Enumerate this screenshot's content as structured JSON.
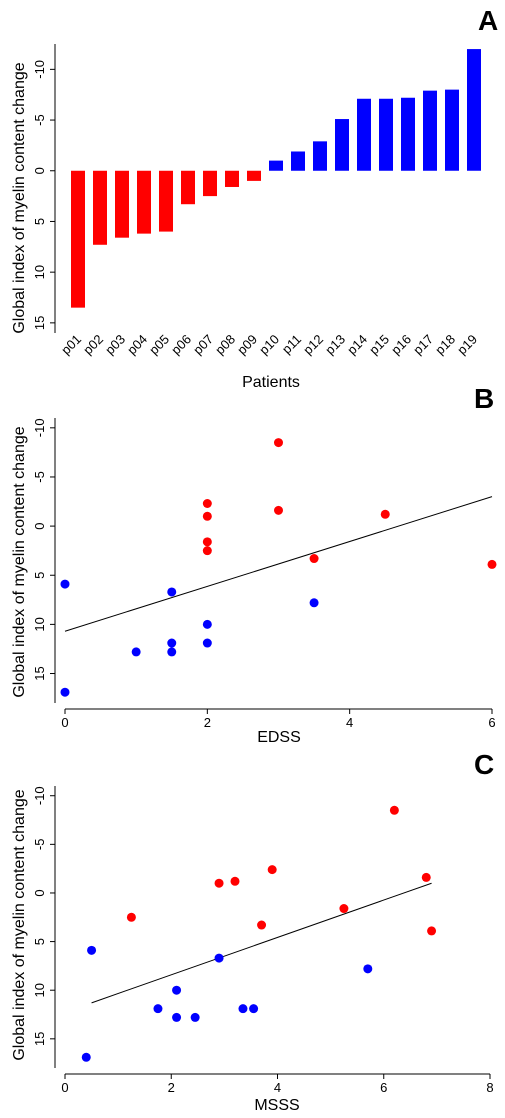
{
  "chart_data": [
    {
      "panel": "A",
      "type": "bar",
      "xlabel": "Patients",
      "ylabel": "Global index of myelin content change",
      "y_axis_inverted": true,
      "ylim": [
        16,
        -12.5
      ],
      "yticks": [
        15,
        10,
        5,
        0,
        -5,
        -10
      ],
      "ytick_labels": [
        "15",
        "10",
        "5",
        "0",
        "-5",
        "-10"
      ],
      "categories": [
        "p01",
        "p02",
        "p03",
        "p04",
        "p05",
        "p06",
        "p07",
        "p08",
        "p09",
        "p10",
        "p11",
        "p12",
        "p13",
        "p14",
        "p15",
        "p16",
        "p17",
        "p18",
        "p19"
      ],
      "values": [
        13.5,
        7.3,
        6.6,
        6.2,
        6.0,
        3.3,
        2.5,
        1.6,
        1.0,
        -1.0,
        -1.9,
        -2.9,
        -5.1,
        -7.1,
        -7.1,
        -7.2,
        -7.9,
        -8.0,
        -12.0
      ],
      "colors": [
        "#ff0000",
        "#ff0000",
        "#ff0000",
        "#ff0000",
        "#ff0000",
        "#ff0000",
        "#ff0000",
        "#ff0000",
        "#ff0000",
        "#0000ff",
        "#0000ff",
        "#0000ff",
        "#0000ff",
        "#0000ff",
        "#0000ff",
        "#0000ff",
        "#0000ff",
        "#0000ff",
        "#0000ff"
      ]
    },
    {
      "panel": "B",
      "type": "scatter",
      "xlabel": "EDSS",
      "ylabel": "Global index of myelin content change",
      "y_axis_inverted": true,
      "xlim": [
        0,
        6
      ],
      "xticks": [
        0,
        2,
        4,
        6
      ],
      "xtick_labels": [
        "0",
        "2",
        "4",
        "6"
      ],
      "ylim": [
        18,
        -11
      ],
      "yticks": [
        15,
        10,
        5,
        0,
        -5,
        -10
      ],
      "ytick_labels": [
        "15",
        "10",
        "5",
        "0",
        "-5",
        "-10"
      ],
      "series": [
        {
          "color": "#ff0000",
          "points": [
            [
              2,
              -2.3
            ],
            [
              2,
              -1.0
            ],
            [
              2,
              1.6
            ],
            [
              2,
              2.5
            ],
            [
              3,
              -8.5
            ],
            [
              3,
              -1.6
            ],
            [
              3.5,
              3.3
            ],
            [
              4.5,
              -1.2
            ],
            [
              6,
              3.9
            ]
          ]
        },
        {
          "color": "#0000ff",
          "points": [
            [
              0,
              5.9
            ],
            [
              0,
              16.9
            ],
            [
              1,
              12.8
            ],
            [
              1.5,
              6.7
            ],
            [
              1.5,
              11.9
            ],
            [
              1.5,
              12.8
            ],
            [
              2,
              10.0
            ],
            [
              2,
              11.9
            ],
            [
              3.5,
              7.8
            ]
          ]
        }
      ],
      "fit_line": {
        "x": [
          0,
          6
        ],
        "y": [
          10.7,
          -3.0
        ]
      }
    },
    {
      "panel": "C",
      "type": "scatter",
      "xlabel": "MSSS",
      "ylabel": "Global index of myelin content change",
      "y_axis_inverted": true,
      "xlim": [
        0,
        8
      ],
      "xticks": [
        0,
        2,
        4,
        6,
        8
      ],
      "xtick_labels": [
        "0",
        "2",
        "4",
        "6",
        "8"
      ],
      "ylim": [
        18,
        -11
      ],
      "yticks": [
        15,
        10,
        5,
        0,
        -5,
        -10
      ],
      "ytick_labels": [
        "15",
        "10",
        "5",
        "0",
        "-5",
        "-10"
      ],
      "series": [
        {
          "color": "#ff0000",
          "points": [
            [
              1.25,
              2.5
            ],
            [
              2.9,
              -1.0
            ],
            [
              3.2,
              -1.2
            ],
            [
              3.9,
              -2.4
            ],
            [
              3.7,
              3.3
            ],
            [
              5.25,
              1.6
            ],
            [
              6.2,
              -8.5
            ],
            [
              6.8,
              -1.6
            ],
            [
              6.9,
              3.9
            ]
          ]
        },
        {
          "color": "#0000ff",
          "points": [
            [
              0.4,
              16.9
            ],
            [
              0.5,
              5.9
            ],
            [
              1.75,
              11.9
            ],
            [
              2.1,
              10.0
            ],
            [
              2.1,
              12.8
            ],
            [
              2.45,
              12.8
            ],
            [
              2.9,
              6.7
            ],
            [
              3.35,
              11.9
            ],
            [
              3.55,
              11.9
            ],
            [
              5.7,
              7.8
            ]
          ]
        }
      ],
      "fit_line": {
        "x": [
          0.5,
          6.9
        ],
        "y": [
          11.3,
          -1.0
        ]
      }
    }
  ]
}
